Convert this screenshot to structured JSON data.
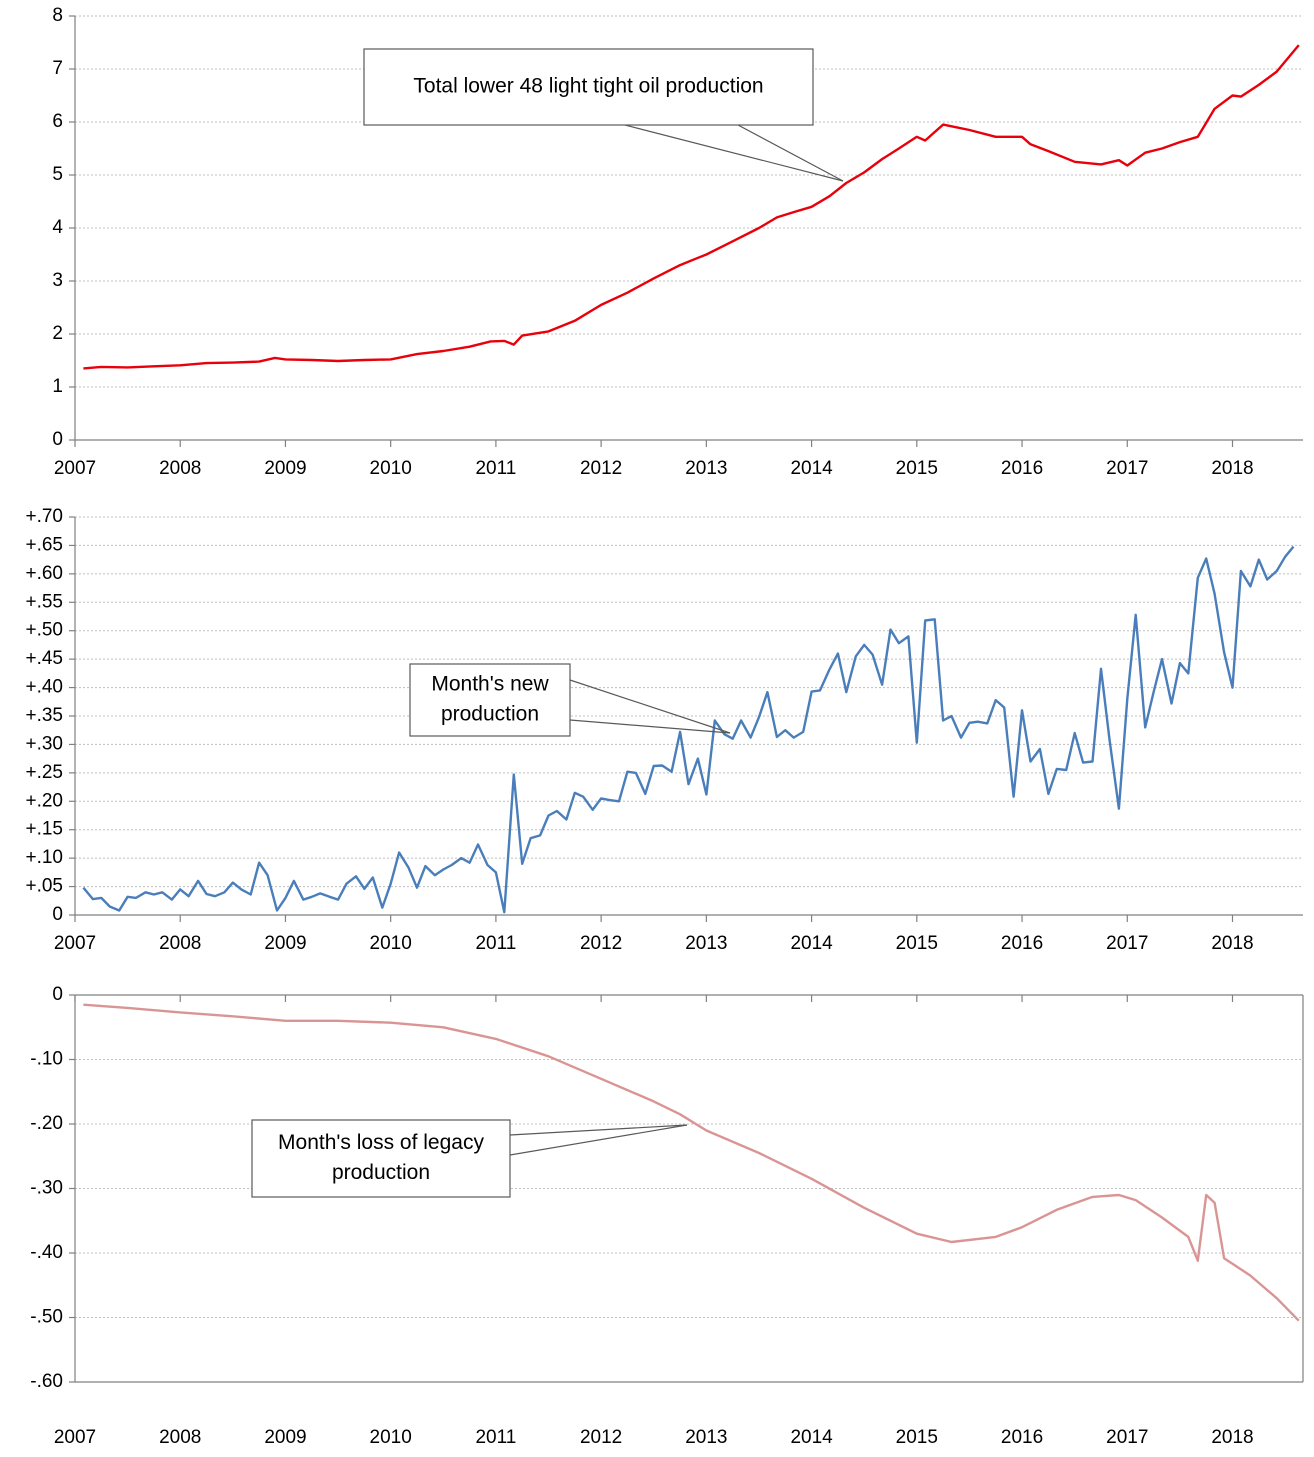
{
  "chart_data": [
    {
      "type": "line",
      "x": [
        2007.08,
        2007.25,
        2007.5,
        2007.75,
        2008.0,
        2008.25,
        2008.5,
        2008.75,
        2008.9,
        2009.0,
        2009.25,
        2009.5,
        2009.75,
        2010.0,
        2010.25,
        2010.5,
        2010.75,
        2010.95,
        2011.08,
        2011.17,
        2011.25,
        2011.5,
        2011.75,
        2012.0,
        2012.25,
        2012.5,
        2012.75,
        2012.9,
        2013.0,
        2013.25,
        2013.5,
        2013.67,
        2013.83,
        2014.0,
        2014.17,
        2014.33,
        2014.5,
        2014.67,
        2014.83,
        2015.0,
        2015.08,
        2015.25,
        2015.5,
        2015.75,
        2016.0,
        2016.08,
        2016.25,
        2016.5,
        2016.75,
        2016.92,
        2017.0,
        2017.17,
        2017.33,
        2017.5,
        2017.67,
        2017.83,
        2018.0,
        2018.08,
        2018.25,
        2018.42,
        2018.63
      ],
      "series": [
        {
          "color": "#e8000b",
          "values": [
            1.35,
            1.38,
            1.37,
            1.39,
            1.41,
            1.45,
            1.46,
            1.48,
            1.55,
            1.52,
            1.51,
            1.49,
            1.51,
            1.52,
            1.62,
            1.68,
            1.76,
            1.86,
            1.87,
            1.8,
            1.97,
            2.05,
            2.25,
            2.55,
            2.78,
            3.05,
            3.3,
            3.42,
            3.5,
            3.75,
            4.0,
            4.2,
            4.3,
            4.4,
            4.6,
            4.85,
            5.05,
            5.3,
            5.5,
            5.72,
            5.65,
            5.95,
            5.85,
            5.72,
            5.72,
            5.58,
            5.45,
            5.25,
            5.2,
            5.28,
            5.18,
            5.42,
            5.5,
            5.62,
            5.72,
            6.25,
            6.5,
            6.48,
            6.7,
            6.95,
            7.45
          ]
        }
      ],
      "xlim": [
        2007,
        2018.67
      ],
      "xticks": [
        2007,
        2008,
        2009,
        2010,
        2011,
        2012,
        2013,
        2014,
        2015,
        2016,
        2017,
        2018
      ],
      "ylim": [
        0,
        8
      ],
      "yticks": [
        0,
        1,
        2,
        3,
        4,
        5,
        6,
        7,
        8
      ],
      "grid": true,
      "annotation": {
        "lines": [
          "Total lower 48 light tight oil production"
        ]
      }
    },
    {
      "type": "line",
      "x": [
        2007.08,
        2007.17,
        2007.25,
        2007.33,
        2007.42,
        2007.5,
        2007.58,
        2007.67,
        2007.75,
        2007.83,
        2007.92,
        2008.0,
        2008.08,
        2008.17,
        2008.25,
        2008.33,
        2008.42,
        2008.5,
        2008.58,
        2008.67,
        2008.75,
        2008.83,
        2008.92,
        2009.0,
        2009.08,
        2009.17,
        2009.25,
        2009.33,
        2009.42,
        2009.5,
        2009.58,
        2009.67,
        2009.75,
        2009.83,
        2009.92,
        2010.0,
        2010.08,
        2010.17,
        2010.25,
        2010.33,
        2010.42,
        2010.5,
        2010.58,
        2010.67,
        2010.75,
        2010.83,
        2010.92,
        2011.0,
        2011.08,
        2011.17,
        2011.25,
        2011.33,
        2011.42,
        2011.5,
        2011.58,
        2011.67,
        2011.75,
        2011.83,
        2011.92,
        2012.0,
        2012.08,
        2012.17,
        2012.25,
        2012.33,
        2012.42,
        2012.5,
        2012.58,
        2012.67,
        2012.75,
        2012.83,
        2012.92,
        2013.0,
        2013.08,
        2013.17,
        2013.25,
        2013.33,
        2013.42,
        2013.5,
        2013.58,
        2013.67,
        2013.75,
        2013.83,
        2013.92,
        2014.0,
        2014.08,
        2014.17,
        2014.25,
        2014.33,
        2014.42,
        2014.5,
        2014.58,
        2014.67,
        2014.75,
        2014.83,
        2014.92,
        2015.0,
        2015.08,
        2015.17,
        2015.25,
        2015.33,
        2015.42,
        2015.5,
        2015.58,
        2015.67,
        2015.75,
        2015.83,
        2015.92,
        2016.0,
        2016.08,
        2016.17,
        2016.25,
        2016.33,
        2016.42,
        2016.5,
        2016.58,
        2016.67,
        2016.75,
        2016.83,
        2016.92,
        2017.0,
        2017.08,
        2017.17,
        2017.25,
        2017.33,
        2017.42,
        2017.5,
        2017.58,
        2017.67,
        2017.75,
        2017.83,
        2017.92,
        2018.0,
        2018.08,
        2018.17,
        2018.25,
        2018.33,
        2018.42,
        2018.5,
        2018.58
      ],
      "series": [
        {
          "color": "#4a7ebb",
          "values": [
            0.048,
            0.028,
            0.03,
            0.015,
            0.008,
            0.032,
            0.03,
            0.04,
            0.036,
            0.04,
            0.027,
            0.045,
            0.033,
            0.06,
            0.037,
            0.033,
            0.04,
            0.057,
            0.045,
            0.036,
            0.092,
            0.07,
            0.008,
            0.03,
            0.06,
            0.027,
            0.032,
            0.038,
            0.032,
            0.027,
            0.055,
            0.068,
            0.046,
            0.066,
            0.013,
            0.055,
            0.11,
            0.083,
            0.048,
            0.086,
            0.07,
            0.08,
            0.088,
            0.1,
            0.092,
            0.124,
            0.088,
            0.075,
            0.005,
            0.247,
            0.09,
            0.135,
            0.14,
            0.175,
            0.183,
            0.168,
            0.215,
            0.208,
            0.185,
            0.205,
            0.202,
            0.2,
            0.252,
            0.25,
            0.213,
            0.262,
            0.263,
            0.252,
            0.322,
            0.23,
            0.275,
            0.212,
            0.342,
            0.318,
            0.31,
            0.342,
            0.312,
            0.348,
            0.392,
            0.313,
            0.325,
            0.312,
            0.322,
            0.393,
            0.395,
            0.432,
            0.46,
            0.392,
            0.455,
            0.475,
            0.458,
            0.405,
            0.502,
            0.478,
            0.49,
            0.303,
            0.518,
            0.52,
            0.342,
            0.35,
            0.312,
            0.338,
            0.34,
            0.337,
            0.378,
            0.365,
            0.208,
            0.36,
            0.27,
            0.292,
            0.213,
            0.257,
            0.255,
            0.32,
            0.268,
            0.27,
            0.433,
            0.31,
            0.187,
            0.38,
            0.528,
            0.33,
            0.392,
            0.45,
            0.372,
            0.443,
            0.425,
            0.593,
            0.627,
            0.565,
            0.462,
            0.4,
            0.605,
            0.578,
            0.625,
            0.59,
            0.605,
            0.63,
            0.648
          ]
        }
      ],
      "xlim": [
        2007,
        2018.67
      ],
      "xticks": [
        2007,
        2008,
        2009,
        2010,
        2011,
        2012,
        2013,
        2014,
        2015,
        2016,
        2017,
        2018
      ],
      "ylim": [
        0,
        0.7
      ],
      "yticks": [
        0,
        {
          "value": 0.05,
          "label": "+.05"
        },
        {
          "value": 0.1,
          "label": "+.10"
        },
        {
          "value": 0.15,
          "label": "+.15"
        },
        {
          "value": 0.2,
          "label": "+.20"
        },
        {
          "value": 0.25,
          "label": "+.25"
        },
        {
          "value": 0.3,
          "label": "+.30"
        },
        {
          "value": 0.35,
          "label": "+.35"
        },
        {
          "value": 0.4,
          "label": "+.40"
        },
        {
          "value": 0.45,
          "label": "+.45"
        },
        {
          "value": 0.5,
          "label": "+.50"
        },
        {
          "value": 0.55,
          "label": "+.55"
        },
        {
          "value": 0.6,
          "label": "+.60"
        },
        {
          "value": 0.65,
          "label": "+.65"
        },
        {
          "value": 0.7,
          "label": "+.70"
        }
      ],
      "grid": true,
      "annotation": {
        "lines": [
          "Month's new",
          "production"
        ]
      }
    },
    {
      "type": "line",
      "x": [
        2007.08,
        2007.5,
        2008.0,
        2008.5,
        2009.0,
        2009.5,
        2010.0,
        2010.5,
        2011.0,
        2011.5,
        2012.0,
        2012.5,
        2012.75,
        2013.0,
        2013.5,
        2014.0,
        2014.5,
        2015.0,
        2015.33,
        2015.75,
        2016.0,
        2016.33,
        2016.67,
        2016.92,
        2017.08,
        2017.33,
        2017.58,
        2017.67,
        2017.75,
        2017.83,
        2017.92,
        2018.17,
        2018.42,
        2018.63
      ],
      "series": [
        {
          "color": "#d99594",
          "values": [
            -0.015,
            -0.02,
            -0.027,
            -0.033,
            -0.04,
            -0.04,
            -0.043,
            -0.05,
            -0.068,
            -0.095,
            -0.13,
            -0.165,
            -0.185,
            -0.21,
            -0.245,
            -0.285,
            -0.33,
            -0.37,
            -0.383,
            -0.375,
            -0.36,
            -0.333,
            -0.313,
            -0.31,
            -0.318,
            -0.345,
            -0.375,
            -0.412,
            -0.31,
            -0.322,
            -0.408,
            -0.435,
            -0.47,
            -0.505
          ]
        }
      ],
      "xlim": [
        2007,
        2018.67
      ],
      "xticks": [
        2007,
        2008,
        2009,
        2010,
        2011,
        2012,
        2013,
        2014,
        2015,
        2016,
        2017,
        2018
      ],
      "ylim": [
        -0.6,
        0
      ],
      "yticks": [
        {
          "value": -0.6,
          "label": "-.60"
        },
        {
          "value": -0.5,
          "label": "-.50"
        },
        {
          "value": -0.4,
          "label": "-.40"
        },
        {
          "value": -0.3,
          "label": "-.30"
        },
        {
          "value": -0.2,
          "label": "-.20"
        },
        {
          "value": -0.1,
          "label": "-.10"
        },
        0
      ],
      "grid": true,
      "annotation": {
        "lines": [
          "Month's loss of legacy",
          "production"
        ]
      }
    }
  ]
}
